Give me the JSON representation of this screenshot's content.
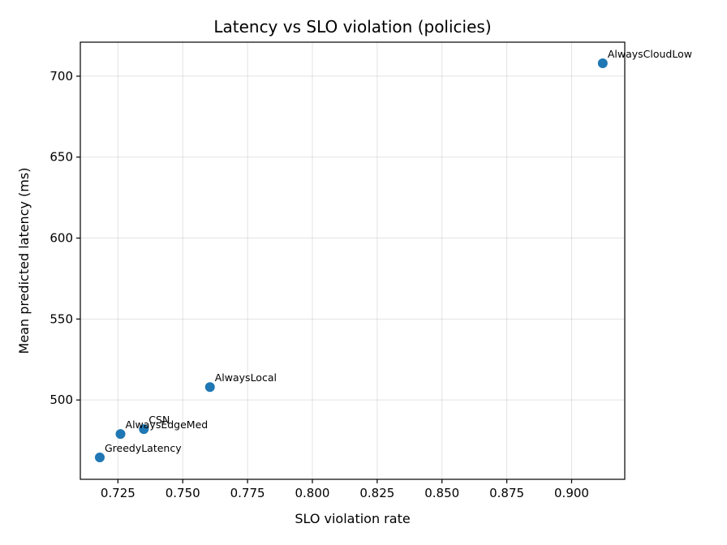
{
  "chart_data": {
    "type": "scatter",
    "title": "Latency vs SLO violation (policies)",
    "xlabel": "SLO violation rate",
    "ylabel": "Mean predicted latency (ms)",
    "xlim": [
      0.7105,
      0.9205
    ],
    "ylim": [
      451,
      721
    ],
    "xticks": [
      "0.725",
      "0.750",
      "0.775",
      "0.800",
      "0.825",
      "0.850",
      "0.875",
      "0.900"
    ],
    "yticks": [
      "500",
      "550",
      "600",
      "650",
      "700"
    ],
    "grid": true,
    "point_color": "#1f77b4",
    "points": [
      {
        "label": "AlwaysCloudLow",
        "x": 0.912,
        "y": 708
      },
      {
        "label": "AlwaysLocal",
        "x": 0.7605,
        "y": 508
      },
      {
        "label": "CSN",
        "x": 0.735,
        "y": 482
      },
      {
        "label": "AlwaysEdgeMed",
        "x": 0.726,
        "y": 479
      },
      {
        "label": "GreedyLatency",
        "x": 0.718,
        "y": 464.5
      }
    ]
  }
}
